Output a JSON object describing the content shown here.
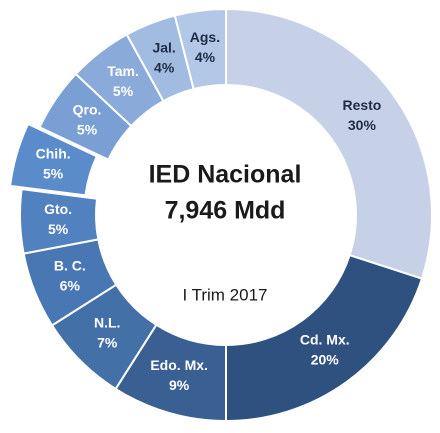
{
  "chart_data": {
    "type": "donut",
    "title": "IED Nacional",
    "subtitle": "7,946 Mdd",
    "annotation": "I Trim 2017",
    "categories": [
      "Resto",
      "Cd. Mx.",
      "Edo. Mx.",
      "N.L.",
      "B. C.",
      "Gto.",
      "Chih.",
      "Qro.",
      "Tam.",
      "Jal.",
      "Ags."
    ],
    "values": [
      30,
      20,
      9,
      7,
      6,
      5,
      5,
      5,
      5,
      4,
      4
    ],
    "value_labels": [
      "30%",
      "20%",
      "9%",
      "7%",
      "6%",
      "5%",
      "5%",
      "5%",
      "5%",
      "4%",
      "4%"
    ],
    "colors": [
      "#c6d1e7",
      "#2f5180",
      "#3a5f93",
      "#4470a8",
      "#4977b3",
      "#5181bf",
      "#5a8bcb",
      "#7a9fd4",
      "#8aabd9",
      "#a2bbe1",
      "#b3c7e7"
    ],
    "exploded": "Chih."
  }
}
